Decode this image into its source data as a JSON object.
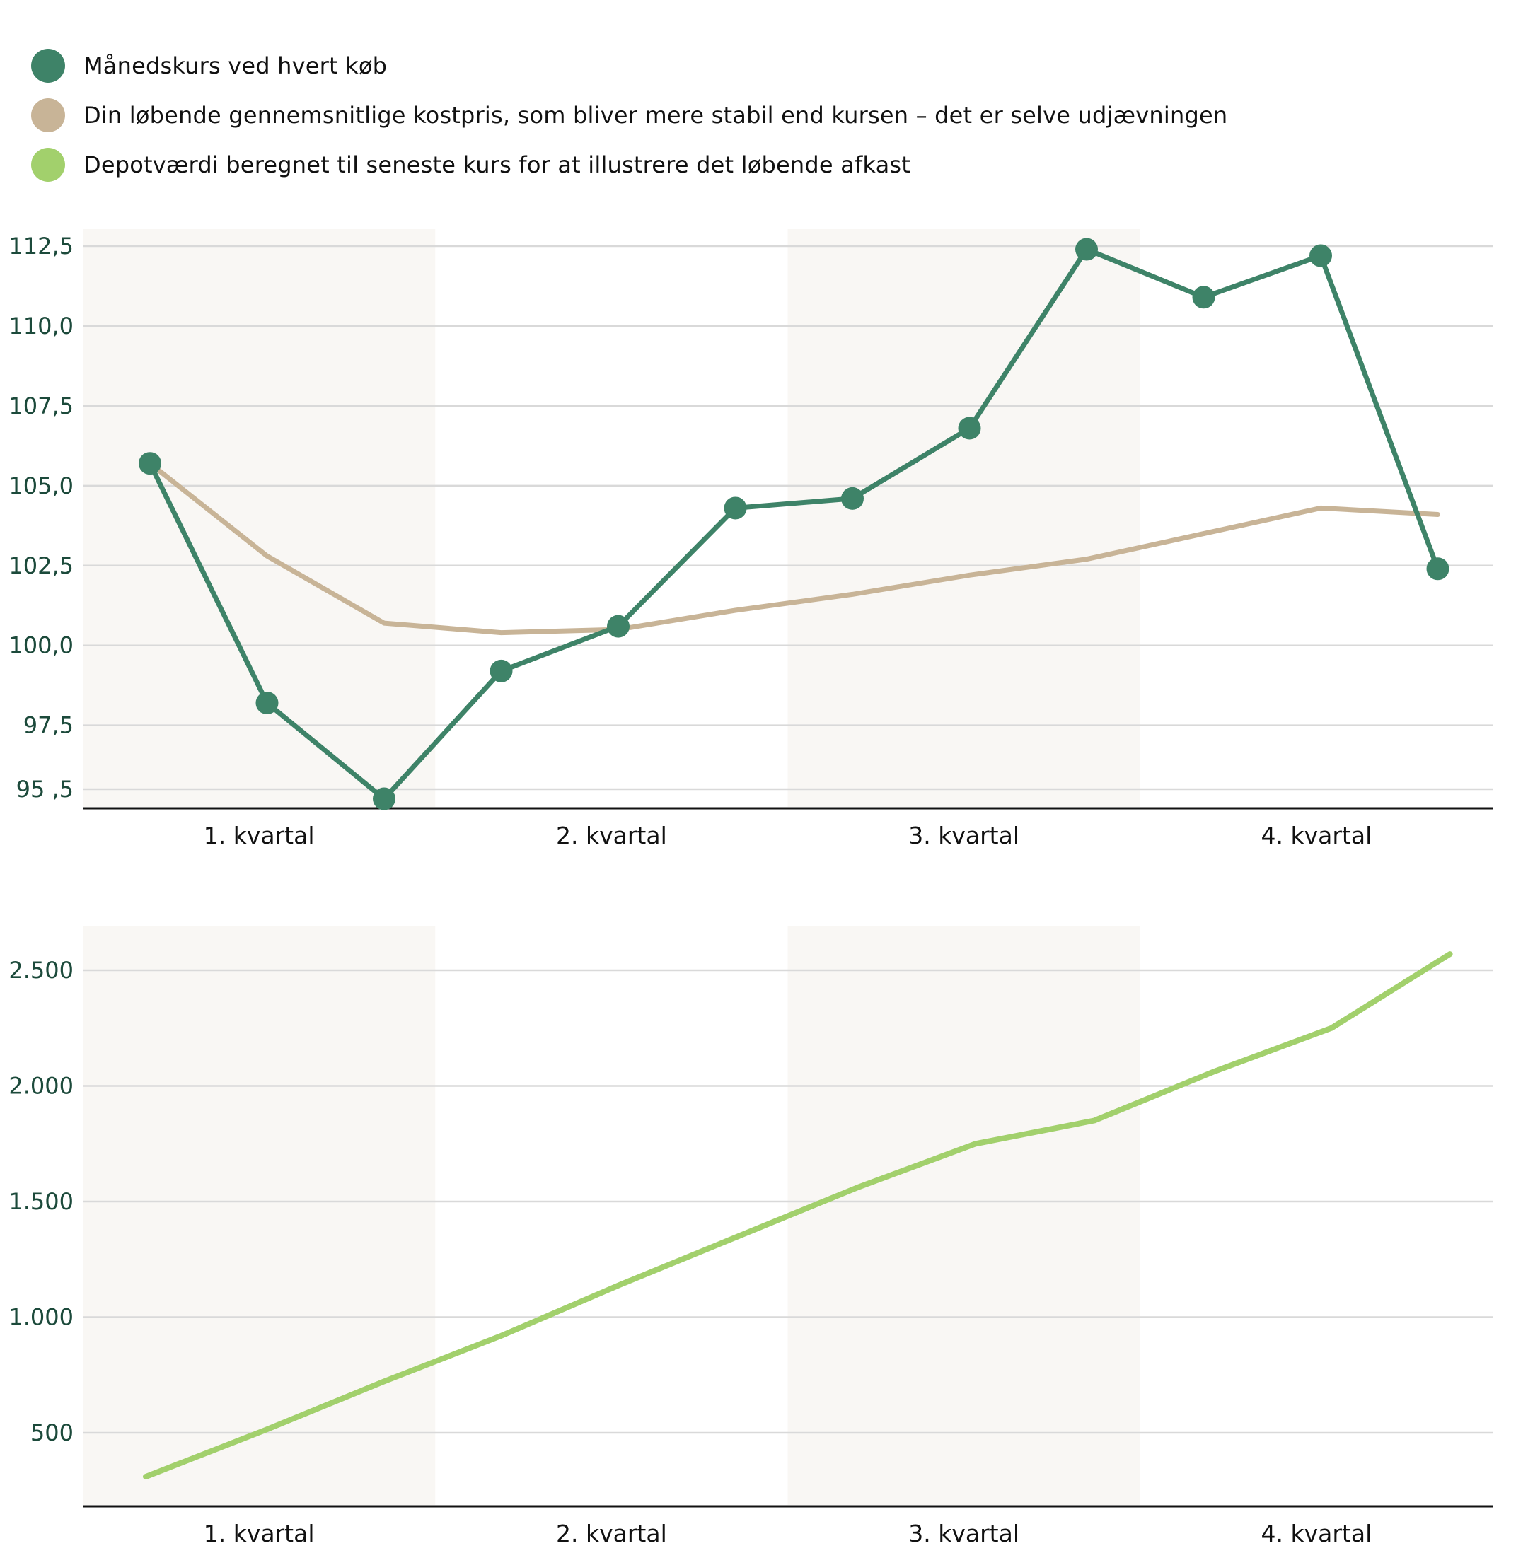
{
  "colors": {
    "kurs": "#3e8368",
    "kostpris": "#c8b497",
    "depot": "#a2d06c",
    "band": "#f9f7f4",
    "grid": "#d9d9d9",
    "axis_text": "#1c4a3b",
    "quarter_highlight": "#2f6a55"
  },
  "legend": [
    {
      "icon": "circle",
      "color": "#3e8368",
      "label": "Månedskurs ved hvert køb"
    },
    {
      "icon": "circle",
      "color": "#c8b497",
      "label": "Din løbende gennemsnitlige kostpris, som bliver mere stabil end kursen – det er selve udjævningen"
    },
    {
      "icon": "circle",
      "color": "#a2d06c",
      "label": "Depotværdi beregnet til seneste kurs for at illustrere det løbende afkast"
    }
  ],
  "chart_data": [
    {
      "type": "line",
      "x": [
        1,
        2,
        3,
        4,
        5,
        6,
        7,
        8,
        9,
        10,
        11,
        12
      ],
      "categories": [
        "1. kvartal",
        "2. kvartal",
        "3. kvartal",
        "4. kvartal"
      ],
      "ylim": [
        95,
        113
      ],
      "yticks": [
        95.5,
        97.5,
        100,
        102.5,
        105,
        107.5,
        110,
        112.5
      ],
      "ytick_labels": [
        "95 ,5",
        "97,5",
        "100,0",
        "102,5",
        "105,0",
        "107,5",
        "110,0",
        "112,5"
      ],
      "grid": true,
      "shaded_quarters": [
        "1. kvartal",
        "3. kvartal"
      ],
      "highlighted_category": "4. kvartal",
      "series": [
        {
          "name": "Månedskurs ved hvert køb",
          "color": "#3e8368",
          "markers": true,
          "values": [
            105.7,
            98.2,
            95.2,
            99.2,
            100.6,
            104.3,
            104.6,
            106.8,
            112.4,
            110.9,
            112.2,
            102.4
          ]
        },
        {
          "name": "Din løbende gennemsnitlige kostpris, som bliver mere stabil end kursen – det er selve udjævningen",
          "color": "#c8b497",
          "markers": false,
          "values": [
            105.7,
            102.8,
            100.7,
            100.4,
            100.5,
            101.1,
            101.6,
            102.2,
            102.7,
            103.5,
            104.3,
            104.1
          ]
        }
      ]
    },
    {
      "type": "line",
      "x": [
        1,
        2,
        3,
        4,
        5,
        6,
        7,
        8,
        9,
        10,
        11,
        12
      ],
      "categories": [
        "1. kvartal",
        "2. kvartal",
        "3. kvartal",
        "4. kvartal"
      ],
      "ylim": [
        200,
        2700
      ],
      "yticks": [
        500,
        1000,
        1500,
        2000,
        2500
      ],
      "ytick_labels": [
        "500",
        "1.000",
        "1.500",
        "2.000",
        "2.500"
      ],
      "grid": true,
      "shaded_quarters": [
        "1. kvartal",
        "3. kvartal"
      ],
      "series": [
        {
          "name": "Depotværdi beregnet til seneste kurs for at illustrere det løbende afkast",
          "color": "#a2d06c",
          "markers": false,
          "values": [
            310,
            510,
            720,
            920,
            1140,
            1350,
            1560,
            1750,
            1850,
            2060,
            2250,
            2570
          ]
        }
      ]
    }
  ]
}
